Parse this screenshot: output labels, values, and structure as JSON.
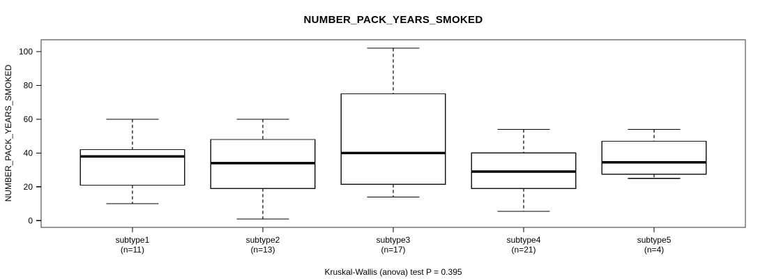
{
  "chart_data": {
    "type": "boxplot",
    "title": "NUMBER_PACK_YEARS_SMOKED",
    "ylabel": "NUMBER_PACK_YEARS_SMOKED",
    "xlabel": "",
    "annotation": "Kruskal-Wallis (anova) test P = 0.395",
    "p_value": 0.395,
    "yticks": [
      0,
      20,
      40,
      60,
      80,
      100
    ],
    "ylim": [
      -4,
      107
    ],
    "grid": false,
    "legend": "none",
    "groups": [
      {
        "label": "subtype1",
        "sublabel": "(n=11)",
        "n": 11,
        "low": 10,
        "q1": 21,
        "median": 38,
        "q3": 42,
        "high": 60
      },
      {
        "label": "subtype2",
        "sublabel": "(n=13)",
        "n": 13,
        "low": 1,
        "q1": 19,
        "median": 34,
        "q3": 48,
        "high": 60
      },
      {
        "label": "subtype3",
        "sublabel": "(n=17)",
        "n": 17,
        "low": 14,
        "q1": 21.5,
        "median": 40,
        "q3": 75,
        "high": 102
      },
      {
        "label": "subtype4",
        "sublabel": "(n=21)",
        "n": 21,
        "low": 5.5,
        "q1": 19,
        "median": 29,
        "q3": 40,
        "high": 54
      },
      {
        "label": "subtype5",
        "sublabel": "(n=4)",
        "n": 4,
        "low": 25,
        "q1": 27.5,
        "median": 34.5,
        "q3": 47,
        "high": 54
      }
    ],
    "colors": {
      "line": "#000000",
      "frame": "#333333",
      "box_border": "#1a1a1a",
      "median": "#000000",
      "box_fill": "#ffffff",
      "background": "#ffffff",
      "text": "#000000"
    }
  }
}
